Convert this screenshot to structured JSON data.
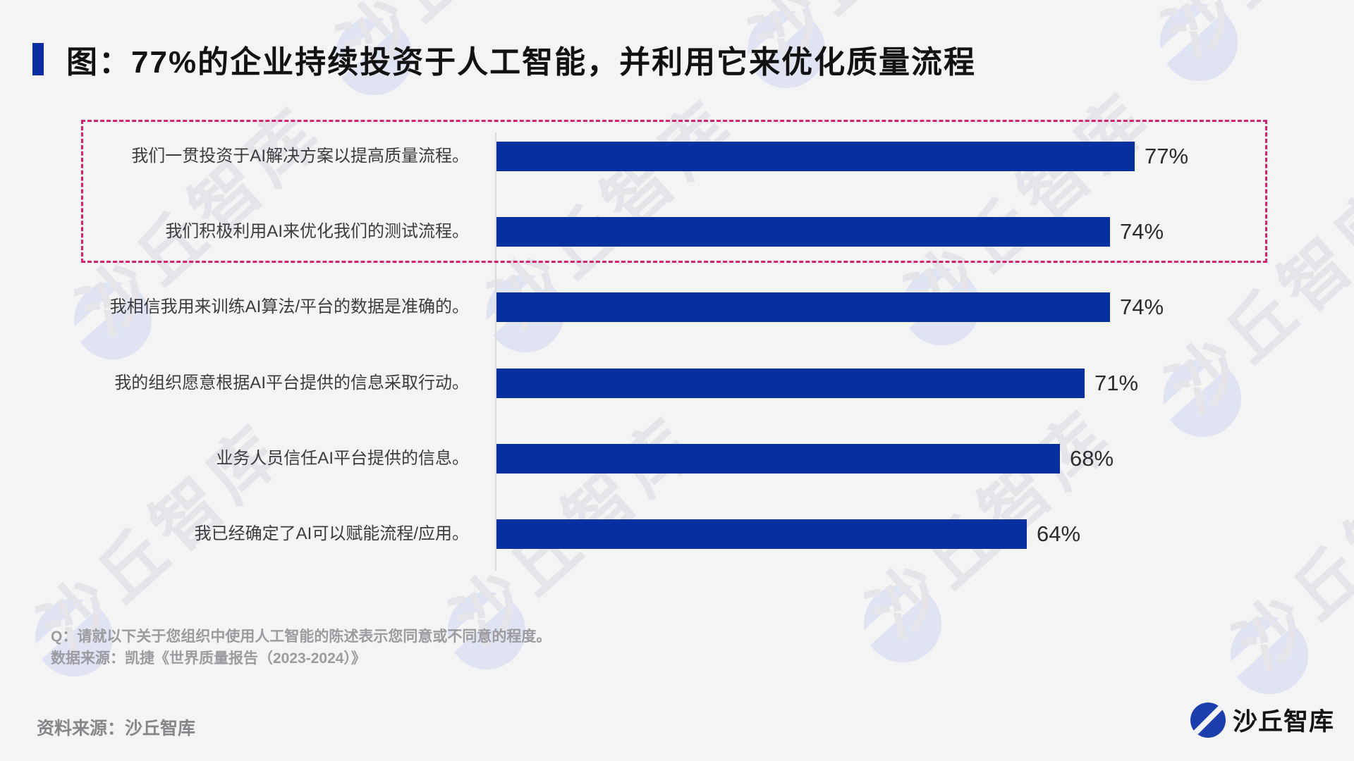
{
  "page": {
    "background": "#f4f4f5",
    "accent_blue": "#0b2da1",
    "bar_blue": "#0630a0",
    "dashed_pink": "#d2246e"
  },
  "title": {
    "text": "图：77%的企业持续投资于人工智能，并利用它来优化质量流程"
  },
  "chart_data": {
    "type": "bar",
    "orientation": "horizontal",
    "title": "图：77%的企业持续投资于人工智能，并利用它来优化质量流程",
    "categories": [
      "我们一贯投资于AI解决方案以提高质量流程。",
      "我们积极利用AI来优化我们的测试流程。",
      "我相信我用来训练AI算法/平台的数据是准确的。",
      "我的组织愿意根据AI平台提供的信息采取行动。",
      "业务人员信任AI平台提供的信息。",
      "我已经确定了AI可以赋能流程/应用。"
    ],
    "values": [
      77,
      74,
      74,
      71,
      68,
      64
    ],
    "value_labels": [
      "77%",
      "74%",
      "74%",
      "71%",
      "68%",
      "64%"
    ],
    "unit": "%",
    "xlim": [
      0,
      100
    ],
    "bar_color": "#0630a0",
    "grid": false,
    "legend": null,
    "highlighted_rows": [
      0,
      1
    ],
    "highlight_border_color": "#d2246e"
  },
  "footnotes": {
    "question": "Q：请就以下关于您组织中使用人工智能的陈述表示您同意或不同意的程度。",
    "data_source": "数据来源：凯捷《世界质量报告（2023-2024）》"
  },
  "footer": {
    "source": "资料来源：沙丘智库",
    "logo_text": "沙丘智库"
  },
  "watermark": {
    "text": "沙丘智库"
  }
}
